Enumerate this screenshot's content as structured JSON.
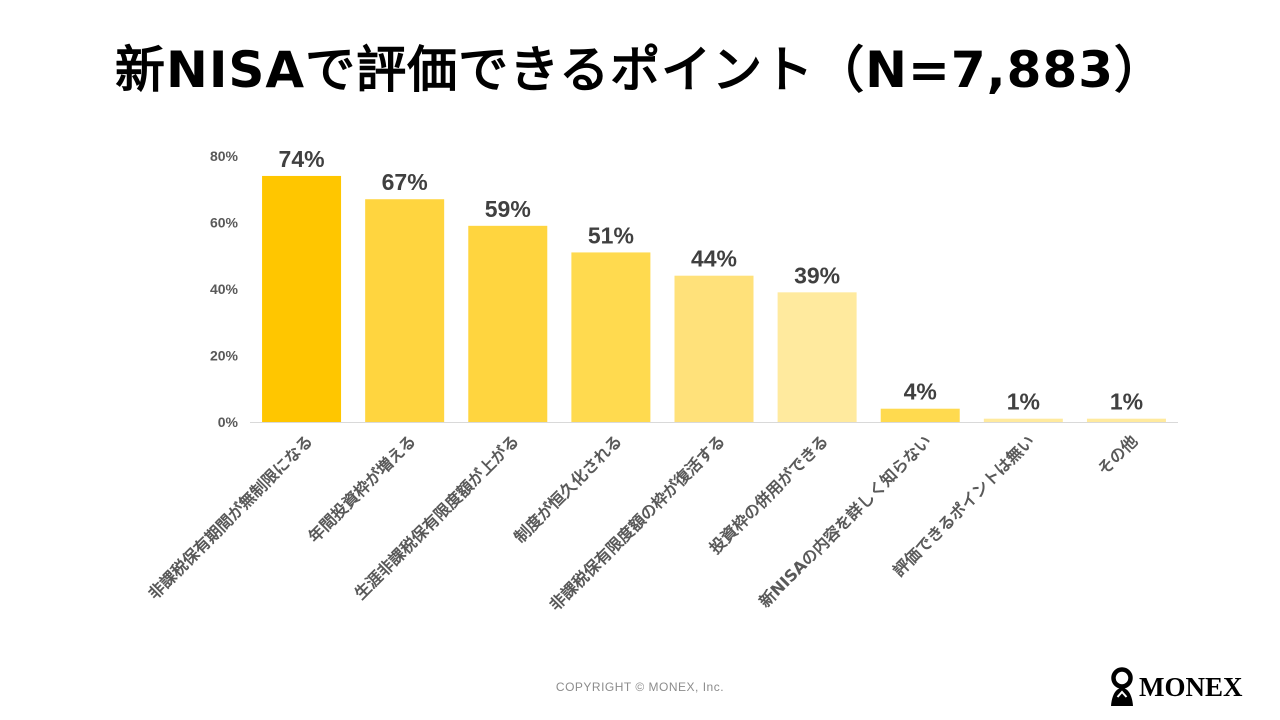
{
  "title": "新NISAで評価できるポイント（N=7,883）",
  "copyright": "COPYRIGHT © MONEX, Inc.",
  "logo": {
    "icon": "monex-logo-icon",
    "text": "MONEX"
  },
  "chart_data": {
    "type": "bar",
    "categories": [
      "非課税保有期間が無制限になる",
      "年間投資枠が増える",
      "生涯非課税保有限度額が上がる",
      "制度が恒久化される",
      "非課税保有限度額の枠が復活する",
      "投資枠の併用ができる",
      "新NISAの内容を詳しく知らない",
      "評価できるポイントは無い",
      "その他"
    ],
    "values": [
      74,
      67,
      59,
      51,
      44,
      39,
      4,
      1,
      1
    ],
    "data_labels": [
      "74%",
      "67%",
      "59%",
      "51%",
      "44%",
      "39%",
      "4%",
      "1%",
      "1%"
    ],
    "colors": [
      "#FFC600",
      "#FFD53F",
      "#FFD53F",
      "#FFDA4F",
      "#FFE17A",
      "#FFEA9E",
      "#FFDA4F",
      "#FFEA9E",
      "#FFEA9E"
    ],
    "yticks": [
      0,
      20,
      40,
      60,
      80
    ],
    "ytick_labels": [
      "0%",
      "20%",
      "40%",
      "60%",
      "80%"
    ],
    "ylim": [
      0,
      80
    ],
    "grid": false
  }
}
